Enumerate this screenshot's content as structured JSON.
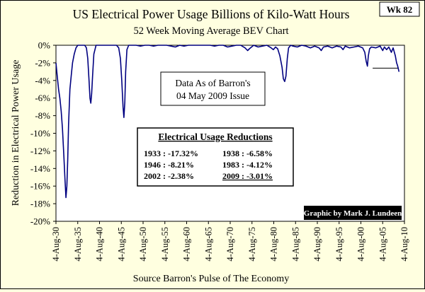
{
  "badge": "Wk 82",
  "chart_data": {
    "type": "line",
    "title": "US Electrical Power Usage Billions of Kilo-Watt Hours",
    "subtitle": "52 Week Moving Average BEV Chart",
    "xlabel": "Source Barron's Pulse of The Economy",
    "ylabel": "Reduction in Electrical Power Usage",
    "ylim": [
      -20,
      0
    ],
    "xlim": [
      1930.6,
      2010.6
    ],
    "y_ticks": [
      0,
      -2,
      -4,
      -6,
      -8,
      -10,
      -12,
      -14,
      -16,
      -18,
      -20
    ],
    "y_tick_labels": [
      "0%",
      "-2%",
      "-4%",
      "-6%",
      "-8%",
      "-10%",
      "-12%",
      "-14%",
      "-16%",
      "-18%",
      "-20%"
    ],
    "x_ticks": [
      1930.6,
      1935.6,
      1940.6,
      1945.6,
      1950.6,
      1955.6,
      1960.6,
      1965.6,
      1970.6,
      1975.6,
      1980.6,
      1985.6,
      1990.6,
      1995.6,
      2000.6,
      2005.6,
      2010.6
    ],
    "x_tick_labels": [
      "4-Aug-30",
      "4-Aug-35",
      "4-Aug-40",
      "4-Aug-45",
      "4-Aug-50",
      "4-Aug-55",
      "4-Aug-60",
      "4-Aug-65",
      "4-Aug-70",
      "4-Aug-75",
      "4-Aug-80",
      "4-Aug-85",
      "4-Aug-90",
      "4-Aug-95",
      "4-Aug-00",
      "4-Aug-05",
      "4-Aug-10"
    ],
    "grid": false,
    "series": [
      {
        "color": "#000080",
        "x": [
          1930.6,
          1930.9,
          1931.2,
          1931.5,
          1931.8,
          1932.1,
          1932.4,
          1932.7,
          1932.9,
          1933.1,
          1933.3,
          1933.5,
          1933.8,
          1934.1,
          1934.4,
          1934.8,
          1935.2,
          1935.6,
          1936.0,
          1936.5,
          1937.2,
          1937.6,
          1937.9,
          1938.2,
          1938.4,
          1938.6,
          1938.8,
          1939.0,
          1939.3,
          1939.8,
          1940.5,
          1941.5,
          1942.5,
          1943.5,
          1944.5,
          1945.0,
          1945.4,
          1945.7,
          1946.0,
          1946.2,
          1946.4,
          1946.6,
          1946.9,
          1947.3,
          1948.0,
          1949.0,
          1950.0,
          1951.0,
          1952.0,
          1953.0,
          1954.0,
          1955.0,
          1956.0,
          1957.0,
          1958.0,
          1959.0,
          1960.0,
          1961.0,
          1962.0,
          1963.0,
          1964.0,
          1965.0,
          1966.0,
          1967.0,
          1968.0,
          1969.0,
          1970.0,
          1971.0,
          1972.0,
          1973.0,
          1974.0,
          1974.6,
          1975.0,
          1975.5,
          1976.0,
          1977.0,
          1978.0,
          1979.0,
          1980.0,
          1980.5,
          1981.0,
          1981.5,
          1982.0,
          1982.5,
          1982.8,
          1983.1,
          1983.4,
          1983.7,
          1984.0,
          1984.5,
          1985.0,
          1986.0,
          1987.0,
          1988.0,
          1989.0,
          1990.0,
          1991.0,
          1991.5,
          1992.0,
          1993.0,
          1994.0,
          1995.0,
          1996.0,
          1996.5,
          1997.0,
          1998.0,
          1999.0,
          2000.0,
          2001.0,
          2001.5,
          2001.8,
          2002.1,
          2002.3,
          2002.6,
          2003.0,
          2004.0,
          2005.0,
          2005.6,
          2006.0,
          2006.5,
          2007.0,
          2007.6,
          2008.0,
          2008.5,
          2008.8,
          2009.0,
          2009.2,
          2009.34
        ],
        "values": [
          -2.0,
          -3.5,
          -5.0,
          -6.0,
          -7.5,
          -9.5,
          -12.5,
          -15.5,
          -17.3,
          -16.0,
          -13.0,
          -9.0,
          -5.0,
          -3.5,
          -2.0,
          -1.0,
          -0.3,
          0.0,
          0.0,
          0.0,
          0.0,
          -0.3,
          -1.5,
          -4.0,
          -6.0,
          -6.58,
          -5.5,
          -3.5,
          -1.0,
          0.0,
          0.0,
          0.0,
          0.0,
          0.0,
          0.0,
          -0.3,
          -1.5,
          -4.0,
          -7.0,
          -8.21,
          -6.5,
          -3.0,
          -0.5,
          0.0,
          0.0,
          0.0,
          -0.1,
          0.0,
          0.0,
          -0.1,
          0.0,
          0.0,
          0.0,
          -0.1,
          -0.2,
          0.0,
          -0.1,
          0.0,
          0.0,
          0.0,
          0.0,
          0.0,
          0.0,
          -0.1,
          0.0,
          0.0,
          -0.2,
          -0.1,
          0.0,
          0.0,
          -0.3,
          -0.6,
          -0.4,
          -0.2,
          0.0,
          -0.2,
          -0.1,
          0.0,
          -0.3,
          -0.5,
          -0.2,
          -0.4,
          -1.2,
          -2.5,
          -3.8,
          -4.12,
          -3.5,
          -1.5,
          -0.3,
          0.0,
          -0.1,
          -0.2,
          0.0,
          -0.1,
          -0.3,
          -0.1,
          -0.3,
          -0.6,
          -0.2,
          -0.1,
          -0.3,
          -0.1,
          -0.2,
          -0.5,
          -0.1,
          -0.3,
          -0.2,
          -0.1,
          -0.3,
          -0.8,
          -1.8,
          -2.38,
          -1.2,
          -0.4,
          -0.2,
          -0.3,
          -0.1,
          -0.6,
          -0.2,
          -0.5,
          -0.2,
          -0.8,
          -0.3,
          -1.2,
          -2.0,
          -2.3,
          -2.7,
          -3.01
        ]
      }
    ],
    "annotations": [
      {
        "lines": [
          "Data As of Barron's",
          "04 May 2009 Issue"
        ]
      },
      {
        "header": "Electrical Usage Reductions",
        "rows": [
          [
            "1933 : -17.32%",
            "1938 : -6.58%"
          ],
          [
            "1946 : -8.21%",
            "1983 : -4.12%"
          ],
          [
            "2002 : -2.38%",
            "2009 : -3.01%"
          ]
        ]
      },
      {
        "text": "Graphic by Mark J. Lundeen"
      }
    ],
    "reference_line": {
      "y": -2.6,
      "x_start": 2003.3,
      "x_end": 2009.3
    }
  }
}
